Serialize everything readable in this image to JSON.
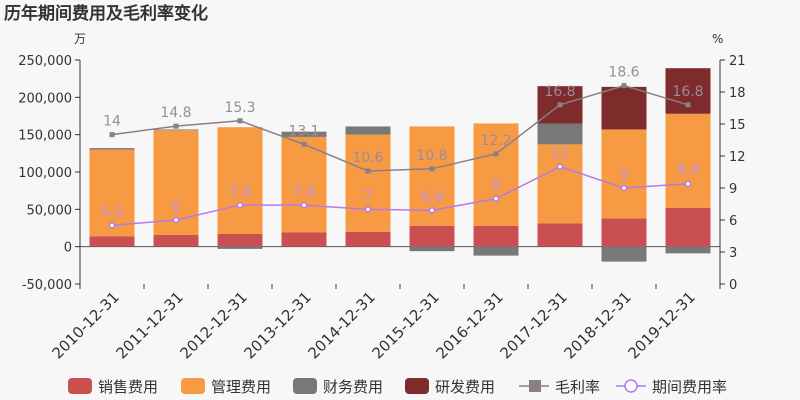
{
  "chart_data": {
    "type": "bar",
    "title": "历年期间费用及毛利率变化",
    "left_unit": "万",
    "right_unit": "%",
    "categories": [
      "2010-12-31",
      "2011-12-31",
      "2012-12-31",
      "2013-12-31",
      "2014-12-31",
      "2015-12-31",
      "2016-12-31",
      "2017-12-31",
      "2018-12-31",
      "2019-12-31"
    ],
    "y_left": {
      "min": -50000,
      "max": 250000,
      "ticks": [
        -50000,
        0,
        50000,
        100000,
        150000,
        200000,
        250000
      ],
      "tick_labels": [
        "-50,000",
        "0",
        "50,000",
        "100,000",
        "150,000",
        "200,000",
        "250,000"
      ]
    },
    "y_right": {
      "min": 0,
      "max": 21,
      "ticks": [
        0,
        3,
        6,
        9,
        12,
        15,
        18,
        21
      ],
      "tick_labels": [
        "0",
        "3",
        "6",
        "9",
        "12",
        "15",
        "18",
        "21"
      ]
    },
    "series": [
      {
        "name": "销售费用",
        "kind": "bar",
        "color": "#c9504f",
        "values": [
          14000,
          16000,
          17000,
          19000,
          20000,
          28000,
          28000,
          31000,
          38000,
          52000
        ]
      },
      {
        "name": "管理费用",
        "kind": "bar",
        "color": "#f79a44",
        "values": [
          116000,
          140000,
          143000,
          128000,
          130000,
          133000,
          137000,
          106000,
          119000,
          126000
        ]
      },
      {
        "name": "财务费用",
        "kind": "bar",
        "color": "#787878",
        "values": [
          2000,
          1000,
          -3000,
          7000,
          11000,
          -6000,
          -12000,
          28000,
          -20000,
          -9000
        ]
      },
      {
        "name": "研发费用",
        "kind": "bar",
        "color": "#7e2b2b",
        "values": [
          0,
          0,
          0,
          0,
          0,
          0,
          0,
          50000,
          57000,
          61000
        ]
      },
      {
        "name": "毛利率",
        "kind": "line",
        "axis": "right",
        "color": "#8a7e88",
        "labels_color": "#9a8c98",
        "values": [
          14,
          14.8,
          15.3,
          13.1,
          10.6,
          10.8,
          12.2,
          16.8,
          18.6,
          16.8
        ],
        "labels": [
          "14",
          "14.8",
          "15.3",
          "13.1",
          "10.6",
          "10.8",
          "12.2",
          "16.8",
          "18.6",
          "16.8"
        ]
      },
      {
        "name": "期间费用率",
        "kind": "line",
        "axis": "right",
        "color": "#b57ae4",
        "labels_color": "#c58fe6",
        "values": [
          5.5,
          6,
          7.4,
          7.4,
          7,
          6.9,
          8,
          11,
          9,
          9.4
        ],
        "labels": [
          "5.5",
          "6",
          "7.4",
          "7.4",
          "7",
          "6.9",
          "8",
          "11",
          "9",
          "9.4"
        ]
      }
    ],
    "grid": false,
    "legend": "bottom"
  }
}
